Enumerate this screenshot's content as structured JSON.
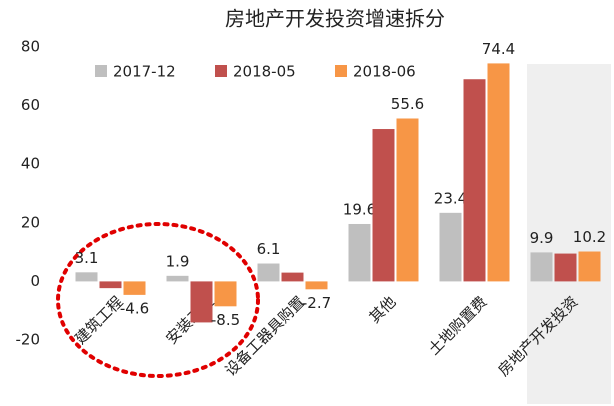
{
  "chart_data": {
    "type": "bar",
    "title": "房地产开发投资增速拆分",
    "categories": [
      "建筑工程",
      "安装工程",
      "设备工器具购置",
      "其他",
      "土地购置费",
      "房地产开发投资"
    ],
    "series": [
      {
        "name": "2017-12",
        "color": "#bfbfbf",
        "show_labels": true,
        "values": [
          3.1,
          1.9,
          6.1,
          19.6,
          23.4,
          9.9
        ]
      },
      {
        "name": "2018-05",
        "color": "#c0504d",
        "show_labels": false,
        "values": [
          -2.3,
          -14,
          3,
          52,
          69,
          9.5
        ]
      },
      {
        "name": "2018-06",
        "color": "#f79646",
        "show_labels": true,
        "values": [
          -4.6,
          -8.5,
          -2.7,
          55.6,
          74.4,
          10.2
        ]
      }
    ],
    "ylim": [
      -20,
      80
    ],
    "yticks": [
      -20,
      0,
      20,
      40,
      60,
      80
    ],
    "grid": false,
    "legend": "top"
  }
}
